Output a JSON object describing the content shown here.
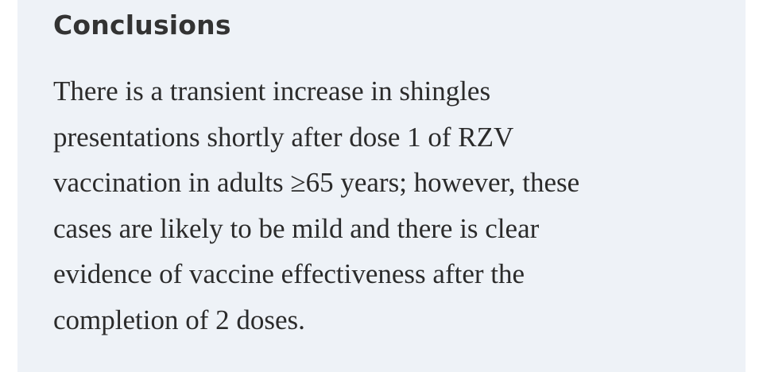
{
  "section": {
    "heading": "Conclusions",
    "lines": [
      "There is a transient increase in shingles",
      "presentations shortly after dose 1 of RZV",
      "vaccination in adults ≥65 years; however, these",
      "cases are likely to be mild and there is clear",
      "evidence of vaccine effectiveness after the",
      "completion of 2 doses."
    ]
  }
}
